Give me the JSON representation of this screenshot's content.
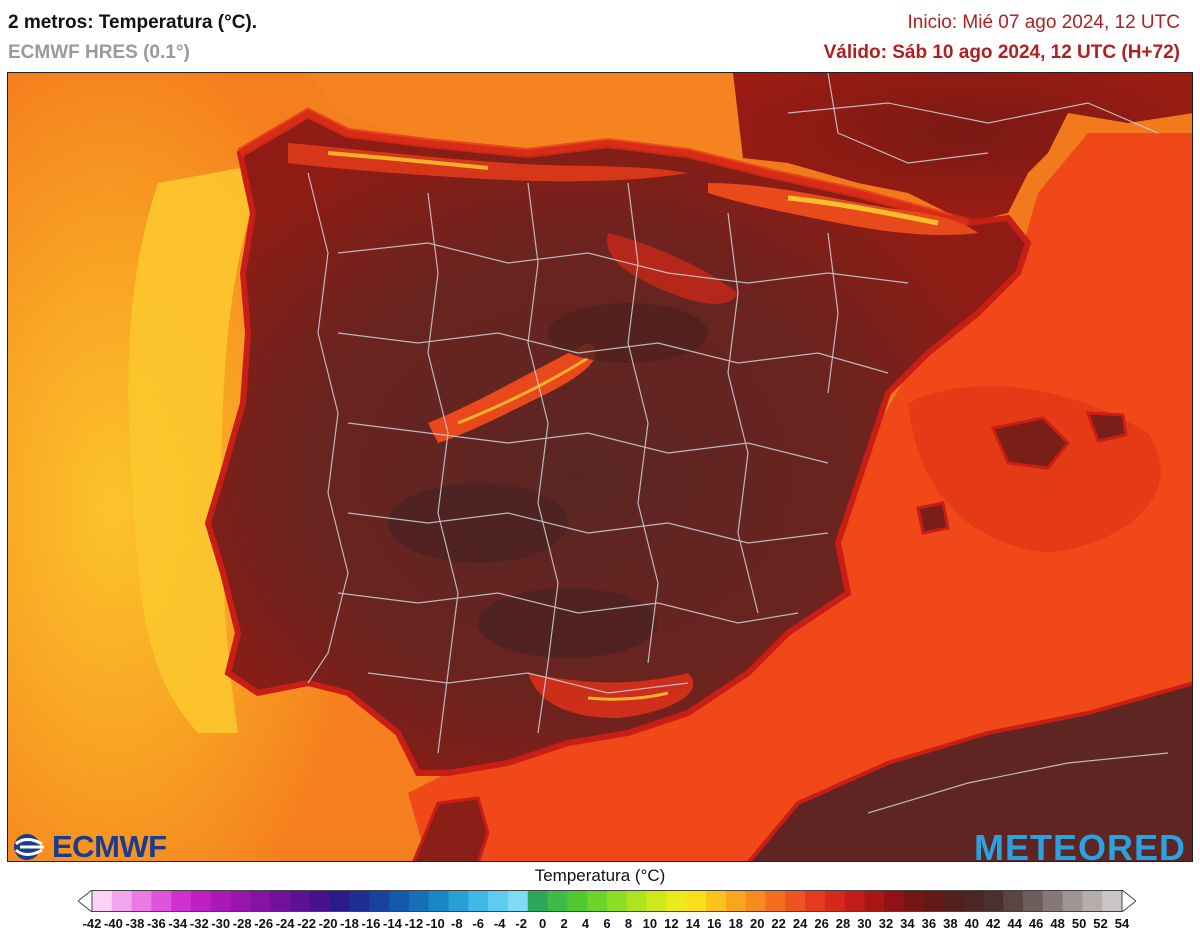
{
  "header": {
    "title": "2 metros: Temperatura (°C).",
    "model": "ECMWF HRES (0.1°)",
    "init": "Inicio: Mié 07 ago 2024, 12 UTC",
    "valid": "Válido: Sáb 10 ago 2024, 12 UTC (H+72)"
  },
  "logos": {
    "ecmwf": "ECMWF",
    "meteored": "METEORED"
  },
  "legend": {
    "title": "Temperatura (°C)",
    "ticks": [
      "-42",
      "-40",
      "-38",
      "-36",
      "-34",
      "-32",
      "-30",
      "-28",
      "-26",
      "-24",
      "-22",
      "-20",
      "-18",
      "-16",
      "-14",
      "-12",
      "-10",
      "-8",
      "-6",
      "-4",
      "-2",
      "0",
      "2",
      "4",
      "6",
      "8",
      "10",
      "12",
      "14",
      "16",
      "18",
      "20",
      "22",
      "24",
      "26",
      "28",
      "30",
      "32",
      "34",
      "36",
      "38",
      "40",
      "42",
      "44",
      "46",
      "48",
      "50",
      "52",
      "54"
    ],
    "colors": [
      "#fbd3f7",
      "#f3a6ee",
      "#eb7ae4",
      "#e053dc",
      "#d12fd0",
      "#bf1fc3",
      "#ab17b8",
      "#9815ae",
      "#8413a6",
      "#71119d",
      "#5e1096",
      "#4a118f",
      "#2a1a8a",
      "#1f2d94",
      "#17439f",
      "#135aab",
      "#1470b9",
      "#1987c6",
      "#27a0d6",
      "#3eb8e5",
      "#5ecbef",
      "#7fdaf5",
      "#2ca85a",
      "#3dbb45",
      "#52c833",
      "#6ed42a",
      "#8ddd22",
      "#aee41d",
      "#cde91a",
      "#e9ec18",
      "#f8df1a",
      "#fac31c",
      "#f9a61e",
      "#f78b20",
      "#f46d20",
      "#ef5320",
      "#e63a1f",
      "#d8281c",
      "#c41d19",
      "#aa1615",
      "#8f1314",
      "#771513",
      "#631a17",
      "#53201d",
      "#4a2724",
      "#4a302e",
      "#5a4542",
      "#6d5d5b",
      "#857876",
      "#9f9593",
      "#b6aeac",
      "#cbc6c5"
    ]
  },
  "map": {
    "sea_atlantic": "#f7a020",
    "sea_near_coast": "#fbc02a",
    "sea_mediterranean": "#f04a18",
    "sea_bay": "#f26a1a",
    "land_hot": "#5a2422",
    "land_warm": "#8a1a14",
    "land_coast": "#c81e16",
    "mountain": "#e84a1c",
    "peaks": "#f7b22a",
    "borders": "#cfcfd6"
  }
}
